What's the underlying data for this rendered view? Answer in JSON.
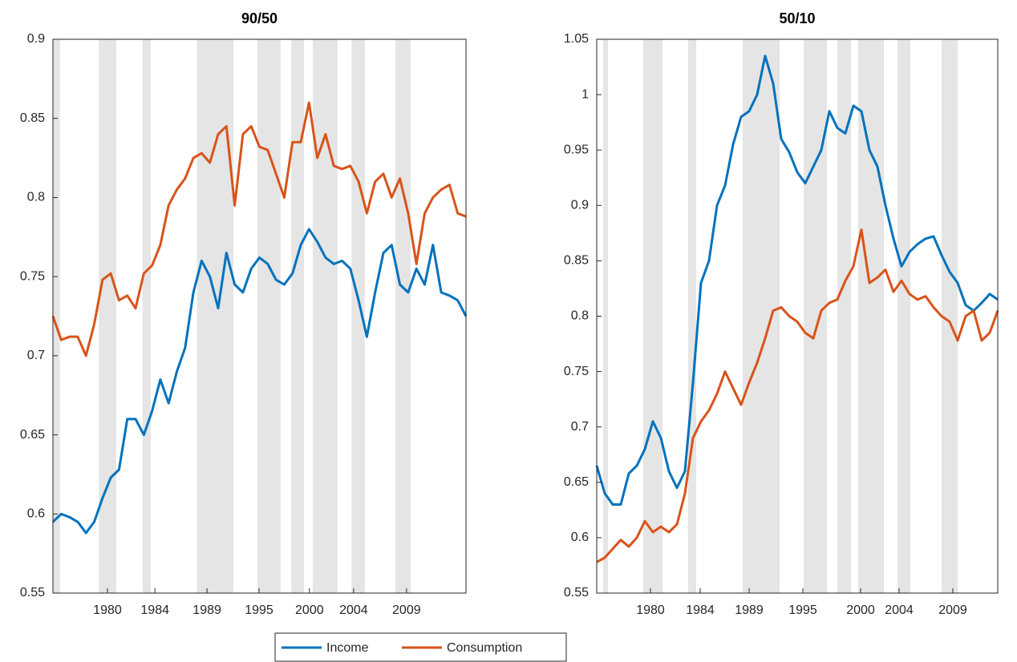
{
  "chart_data": [
    {
      "type": "line",
      "title": "90/50",
      "x": [
        0,
        2,
        4,
        6,
        8,
        10,
        12,
        14,
        16,
        18,
        20,
        22,
        24,
        26,
        28,
        30,
        32,
        34,
        36,
        38,
        40,
        42,
        44,
        46,
        48,
        50,
        52,
        54,
        56,
        58,
        60,
        62,
        64,
        66,
        68,
        70,
        72,
        74,
        76,
        78,
        80,
        82,
        84,
        86,
        88,
        90,
        92,
        94,
        96,
        98,
        100
      ],
      "series": [
        {
          "name": "Income",
          "color": "#0072BD",
          "values": [
            0.595,
            0.6,
            0.598,
            0.595,
            0.588,
            0.595,
            0.61,
            0.623,
            0.628,
            0.66,
            0.66,
            0.65,
            0.665,
            0.685,
            0.67,
            0.69,
            0.705,
            0.74,
            0.76,
            0.75,
            0.73,
            0.765,
            0.745,
            0.74,
            0.755,
            0.762,
            0.758,
            0.748,
            0.745,
            0.752,
            0.77,
            0.78,
            0.772,
            0.762,
            0.758,
            0.76,
            0.755,
            0.735,
            0.712,
            0.74,
            0.765,
            0.77,
            0.745,
            0.74,
            0.755,
            0.745,
            0.77,
            0.74,
            0.738,
            0.735,
            0.725
          ]
        },
        {
          "name": "Consumption",
          "color": "#D95319",
          "values": [
            0.725,
            0.71,
            0.712,
            0.712,
            0.7,
            0.72,
            0.748,
            0.752,
            0.735,
            0.738,
            0.73,
            0.752,
            0.757,
            0.77,
            0.795,
            0.805,
            0.812,
            0.825,
            0.828,
            0.822,
            0.84,
            0.845,
            0.795,
            0.84,
            0.845,
            0.832,
            0.83,
            0.815,
            0.8,
            0.835,
            0.835,
            0.86,
            0.825,
            0.84,
            0.82,
            0.818,
            0.82,
            0.81,
            0.79,
            0.81,
            0.815,
            0.8,
            0.812,
            0.79,
            0.758,
            0.79,
            0.8,
            0.805,
            0.808,
            0.79,
            0.788
          ]
        }
      ],
      "xlim": [
        0,
        100
      ],
      "xticks": [
        {
          "value": 13.2,
          "label": "1980"
        },
        {
          "value": 24.7,
          "label": "1984"
        },
        {
          "value": 37.3,
          "label": "1989"
        },
        {
          "value": 49.9,
          "label": "1995"
        },
        {
          "value": 62.1,
          "label": "2000"
        },
        {
          "value": 72.8,
          "label": "2004"
        },
        {
          "value": 85.6,
          "label": "2009"
        }
      ],
      "ylim": [
        0.55,
        0.9
      ],
      "yticks": [
        0.55,
        0.6,
        0.65,
        0.7,
        0.75,
        0.8,
        0.85,
        0.9
      ],
      "shaded_periods": [
        [
          0,
          1.7
        ],
        [
          11.1,
          15.3
        ],
        [
          21.7,
          23.7
        ],
        [
          34.9,
          43.7
        ],
        [
          49.5,
          55.1
        ],
        [
          57.7,
          60.8
        ],
        [
          62.9,
          68.9
        ],
        [
          72.3,
          75.5
        ],
        [
          82.9,
          86.6
        ]
      ],
      "shade_color": "#e5e5e5"
    },
    {
      "type": "line",
      "title": "50/10",
      "x": [
        0,
        2,
        4,
        6,
        8,
        10,
        12,
        14,
        16,
        18,
        20,
        22,
        24,
        26,
        28,
        30,
        32,
        34,
        36,
        38,
        40,
        42,
        44,
        46,
        48,
        50,
        52,
        54,
        56,
        58,
        60,
        62,
        64,
        66,
        68,
        70,
        72,
        74,
        76,
        78,
        80,
        82,
        84,
        86,
        88,
        90,
        92,
        94,
        96,
        98,
        100
      ],
      "series": [
        {
          "name": "Income",
          "color": "#0072BD",
          "values": [
            0.665,
            0.64,
            0.63,
            0.63,
            0.658,
            0.665,
            0.68,
            0.705,
            0.69,
            0.66,
            0.645,
            0.66,
            0.74,
            0.83,
            0.85,
            0.9,
            0.918,
            0.955,
            0.98,
            0.985,
            1.0,
            1.035,
            1.01,
            0.96,
            0.948,
            0.93,
            0.92,
            0.935,
            0.95,
            0.985,
            0.97,
            0.965,
            0.99,
            0.985,
            0.95,
            0.935,
            0.9,
            0.87,
            0.845,
            0.858,
            0.865,
            0.87,
            0.872,
            0.855,
            0.84,
            0.83,
            0.81,
            0.805,
            0.812,
            0.82,
            0.815
          ]
        },
        {
          "name": "Consumption",
          "color": "#D95319",
          "values": [
            0.578,
            0.582,
            0.59,
            0.598,
            0.592,
            0.6,
            0.615,
            0.605,
            0.61,
            0.605,
            0.612,
            0.64,
            0.69,
            0.705,
            0.715,
            0.73,
            0.75,
            0.735,
            0.72,
            0.74,
            0.758,
            0.78,
            0.805,
            0.808,
            0.8,
            0.795,
            0.785,
            0.78,
            0.805,
            0.812,
            0.815,
            0.832,
            0.845,
            0.878,
            0.83,
            0.835,
            0.842,
            0.822,
            0.832,
            0.82,
            0.815,
            0.818,
            0.808,
            0.8,
            0.795,
            0.778,
            0.8,
            0.805,
            0.778,
            0.785,
            0.805
          ]
        }
      ],
      "xlim": [
        0,
        100
      ],
      "xticks": [
        {
          "value": 13.4,
          "label": "1980"
        },
        {
          "value": 25.8,
          "label": "1984"
        },
        {
          "value": 38,
          "label": "1989"
        },
        {
          "value": 51.4,
          "label": "1995"
        },
        {
          "value": 65.8,
          "label": "2000"
        },
        {
          "value": 75.4,
          "label": "2004"
        },
        {
          "value": 88.8,
          "label": "2009"
        }
      ],
      "ylim": [
        0.55,
        1.05
      ],
      "yticks": [
        0.55,
        0.6,
        0.65,
        0.7,
        0.75,
        0.8,
        0.85,
        0.9,
        0.95,
        1,
        1.05
      ],
      "shaded_periods": [
        [
          1.6,
          2.8
        ],
        [
          11.6,
          16.4
        ],
        [
          22.8,
          24.8
        ],
        [
          36.4,
          45.6
        ],
        [
          51.6,
          57.4
        ],
        [
          60,
          63.4
        ],
        [
          65.2,
          71.6
        ],
        [
          75,
          78.2
        ],
        [
          86,
          90
        ]
      ],
      "shade_color": "#e5e5e5"
    }
  ]
}
